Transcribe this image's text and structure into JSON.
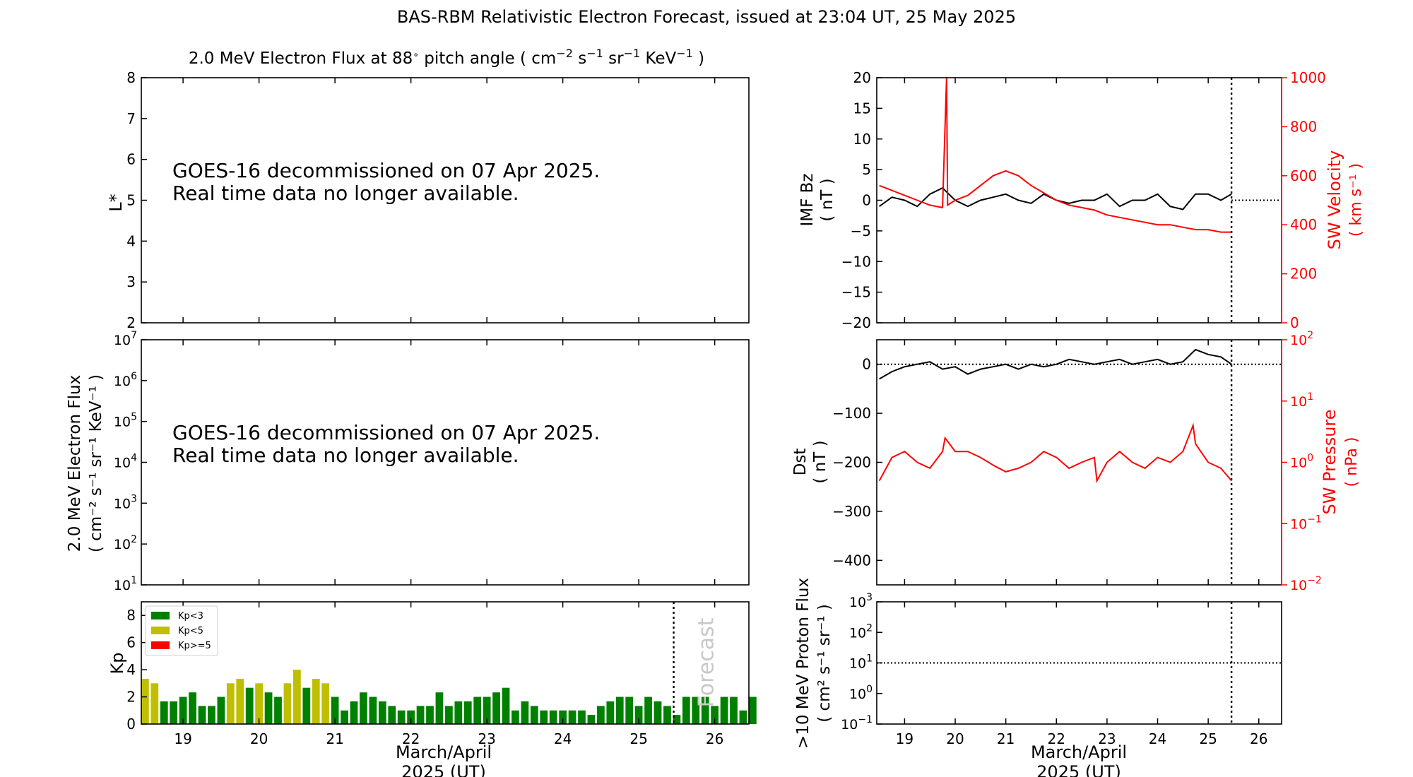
{
  "title": "BAS-RBM Relativistic Electron Forecast, issued at 23:04 UT, 25 May 2025",
  "colors": {
    "black": "#000000",
    "red": "#ff0000",
    "kp_low": "#008000",
    "kp_mid": "#bfbf00",
    "kp_high": "#ff0000",
    "forecast_text": "#c8c8c8"
  },
  "chart_data": [
    {
      "id": "lstar",
      "type": "heatmap",
      "title_main": "2.0 MeV Electron Flux at 88",
      "title_deg": "∘",
      "title_mid": " pitch angle ( cm",
      "title_exp1": "−2",
      "title_s": " s",
      "title_exp2": "−1",
      "title_sr": " sr",
      "title_exp3": "−1",
      "title_kev": " KeV",
      "title_exp4": "−1",
      "title_end": " )",
      "ylabel": "L*",
      "ylim": [
        2,
        8
      ],
      "yticks": [
        2,
        3,
        4,
        5,
        6,
        7,
        8
      ],
      "message": [
        "GOES-16 decommissioned on 07 Apr 2025.",
        "Real time data no longer available."
      ]
    },
    {
      "id": "electron_flux",
      "type": "line",
      "ylabel_line1": "2.0 MeV Electron Flux",
      "ylabel_line2": "( cm⁻² s⁻¹ sr⁻¹ KeV⁻¹ )",
      "yscale": "log",
      "ylim": [
        10,
        10000000
      ],
      "ytick_exponents": [
        1,
        2,
        3,
        4,
        5,
        6,
        7
      ],
      "message": [
        "GOES-16 decommissioned on 07 Apr 2025.",
        "Real time data no longer available."
      ]
    },
    {
      "id": "kp",
      "type": "bar",
      "ylabel": "Kp",
      "ylim": [
        0,
        9
      ],
      "yticks": [
        0,
        2,
        4,
        6,
        8
      ],
      "xlim": [
        18.45,
        26.45
      ],
      "xticks": [
        19,
        20,
        21,
        22,
        23,
        24,
        25,
        26
      ],
      "xlabel_line1": "March/April",
      "xlabel_line2": "2025 (UT)",
      "forecast_line_x": 25.46,
      "forecast_label": "Forecast",
      "legend_position": "top-left",
      "legend": [
        {
          "label": "Kp<3",
          "color": "#008000"
        },
        {
          "label": "Kp<5",
          "color": "#bfbf00"
        },
        {
          "label": "Kp>=5",
          "color": "#ff0000"
        }
      ],
      "bar_width_days": 0.1,
      "start": 18.5,
      "step": 0.125,
      "values": [
        3.33,
        3.0,
        1.67,
        1.67,
        2.0,
        2.33,
        1.33,
        1.33,
        2.0,
        3.0,
        3.33,
        2.67,
        3.0,
        2.33,
        2.0,
        3.0,
        4.0,
        2.67,
        3.33,
        3.0,
        2.0,
        1.0,
        1.67,
        2.33,
        2.0,
        1.67,
        1.33,
        1.0,
        1.0,
        1.33,
        1.33,
        2.33,
        1.33,
        1.67,
        1.67,
        2.0,
        2.0,
        2.33,
        2.67,
        1.0,
        1.67,
        1.33,
        1.0,
        1.0,
        1.0,
        1.0,
        1.0,
        0.67,
        1.33,
        1.67,
        2.0,
        2.0,
        1.33,
        2.0,
        1.67,
        1.33,
        0.67,
        2.0,
        2.0,
        2.0,
        1.33,
        2.0,
        2.0,
        1.0,
        2.0
      ]
    },
    {
      "id": "imf_sw",
      "type": "line",
      "ylabel_left_line1": "IMF Bz",
      "ylabel_left_line2": "( nT )",
      "ylabel_right_line1": "SW Velocity",
      "ylabel_right_line2": "( km s⁻¹ )",
      "ylim_left": [
        -20,
        20
      ],
      "yticks_left": [
        -20,
        -15,
        -10,
        -5,
        0,
        5,
        10,
        15,
        20
      ],
      "ylim_right": [
        0,
        1000
      ],
      "yticks_right": [
        0,
        200,
        400,
        600,
        800,
        1000
      ],
      "xlim": [
        18.45,
        26.45
      ],
      "series": [
        {
          "axis": "left",
          "color": "#000000",
          "x": [
            18.5,
            18.75,
            19.0,
            19.25,
            19.5,
            19.75,
            20.0,
            20.25,
            20.5,
            20.75,
            21.0,
            21.25,
            21.5,
            21.75,
            22.0,
            22.25,
            22.5,
            22.75,
            23.0,
            23.25,
            23.5,
            23.75,
            24.0,
            24.25,
            24.5,
            24.75,
            25.0,
            25.25,
            25.46
          ],
          "y": [
            -1,
            0.5,
            0,
            -1,
            1,
            2,
            0,
            -1,
            0,
            0.5,
            1,
            0,
            -0.5,
            1,
            0,
            -0.5,
            0,
            0,
            1,
            -1,
            0,
            0,
            1,
            -1,
            -1.5,
            1,
            1,
            0,
            1
          ]
        },
        {
          "axis": "right",
          "color": "#ff0000",
          "x": [
            18.5,
            18.75,
            19.0,
            19.25,
            19.5,
            19.75,
            19.83,
            19.85,
            20.0,
            20.25,
            20.5,
            20.75,
            21.0,
            21.25,
            21.5,
            21.75,
            22.0,
            22.25,
            22.5,
            22.75,
            23.0,
            23.25,
            23.5,
            23.75,
            24.0,
            24.25,
            24.5,
            24.75,
            25.0,
            25.25,
            25.46
          ],
          "y": [
            560,
            540,
            520,
            500,
            480,
            470,
            1000,
            480,
            500,
            520,
            560,
            600,
            620,
            600,
            560,
            530,
            500,
            480,
            470,
            460,
            440,
            430,
            420,
            410,
            400,
            400,
            390,
            380,
            380,
            370,
            370
          ]
        }
      ]
    },
    {
      "id": "dst_pressure",
      "type": "line",
      "ylabel_left_line1": "Dst",
      "ylabel_left_line2": "( nT )",
      "ylabel_right_line1": "SW Pressure",
      "ylabel_right_line2": "( nPa )",
      "ylim_left": [
        -450,
        50
      ],
      "yticks_left": [
        -400,
        -300,
        -200,
        -100,
        0
      ],
      "yscale_right": "log",
      "ylim_right": [
        0.01,
        100
      ],
      "ytick_exponents_right": [
        -2,
        -1,
        0,
        1,
        2
      ],
      "xlim": [
        18.45,
        26.45
      ],
      "series": [
        {
          "axis": "left",
          "color": "#000000",
          "x": [
            18.5,
            18.75,
            19.0,
            19.25,
            19.5,
            19.75,
            20.0,
            20.25,
            20.5,
            20.75,
            21.0,
            21.25,
            21.5,
            21.75,
            22.0,
            22.25,
            22.5,
            22.75,
            23.0,
            23.25,
            23.5,
            23.75,
            24.0,
            24.25,
            24.5,
            24.75,
            25.0,
            25.25,
            25.46
          ],
          "y": [
            -30,
            -15,
            -5,
            0,
            5,
            -10,
            -5,
            -20,
            -10,
            -5,
            0,
            -10,
            0,
            -5,
            0,
            10,
            5,
            0,
            5,
            10,
            0,
            5,
            10,
            0,
            5,
            30,
            20,
            15,
            0
          ]
        },
        {
          "axis": "right",
          "color": "#ff0000",
          "x": [
            18.5,
            18.75,
            19.0,
            19.25,
            19.5,
            19.75,
            19.8,
            20.0,
            20.25,
            20.5,
            20.75,
            21.0,
            21.25,
            21.5,
            21.75,
            22.0,
            22.25,
            22.5,
            22.75,
            22.8,
            23.0,
            23.25,
            23.5,
            23.75,
            24.0,
            24.25,
            24.5,
            24.7,
            24.75,
            25.0,
            25.25,
            25.46
          ],
          "y": [
            0.5,
            1.2,
            1.5,
            1.0,
            0.8,
            1.5,
            2.5,
            1.5,
            1.5,
            1.2,
            0.9,
            0.7,
            0.8,
            1.0,
            1.5,
            1.2,
            0.8,
            1.0,
            1.2,
            0.5,
            1.0,
            1.5,
            1.0,
            0.8,
            1.2,
            1.0,
            1.5,
            4.0,
            2.0,
            1.0,
            0.8,
            0.5
          ]
        }
      ]
    },
    {
      "id": "proton",
      "type": "line",
      "ylabel_line1": ">10 MeV Proton Flux",
      "ylabel_line2": "( cm² s⁻¹ sr⁻¹ )",
      "yscale": "log",
      "ylim": [
        0.1,
        1000
      ],
      "ytick_exponents": [
        -1,
        0,
        1,
        2,
        3
      ],
      "threshold": 10,
      "xlim": [
        18.45,
        26.45
      ],
      "xticks": [
        19,
        20,
        21,
        22,
        23,
        24,
        25,
        26
      ],
      "xlabel_line1": "March/April",
      "xlabel_line2": "2025 (UT)"
    }
  ]
}
